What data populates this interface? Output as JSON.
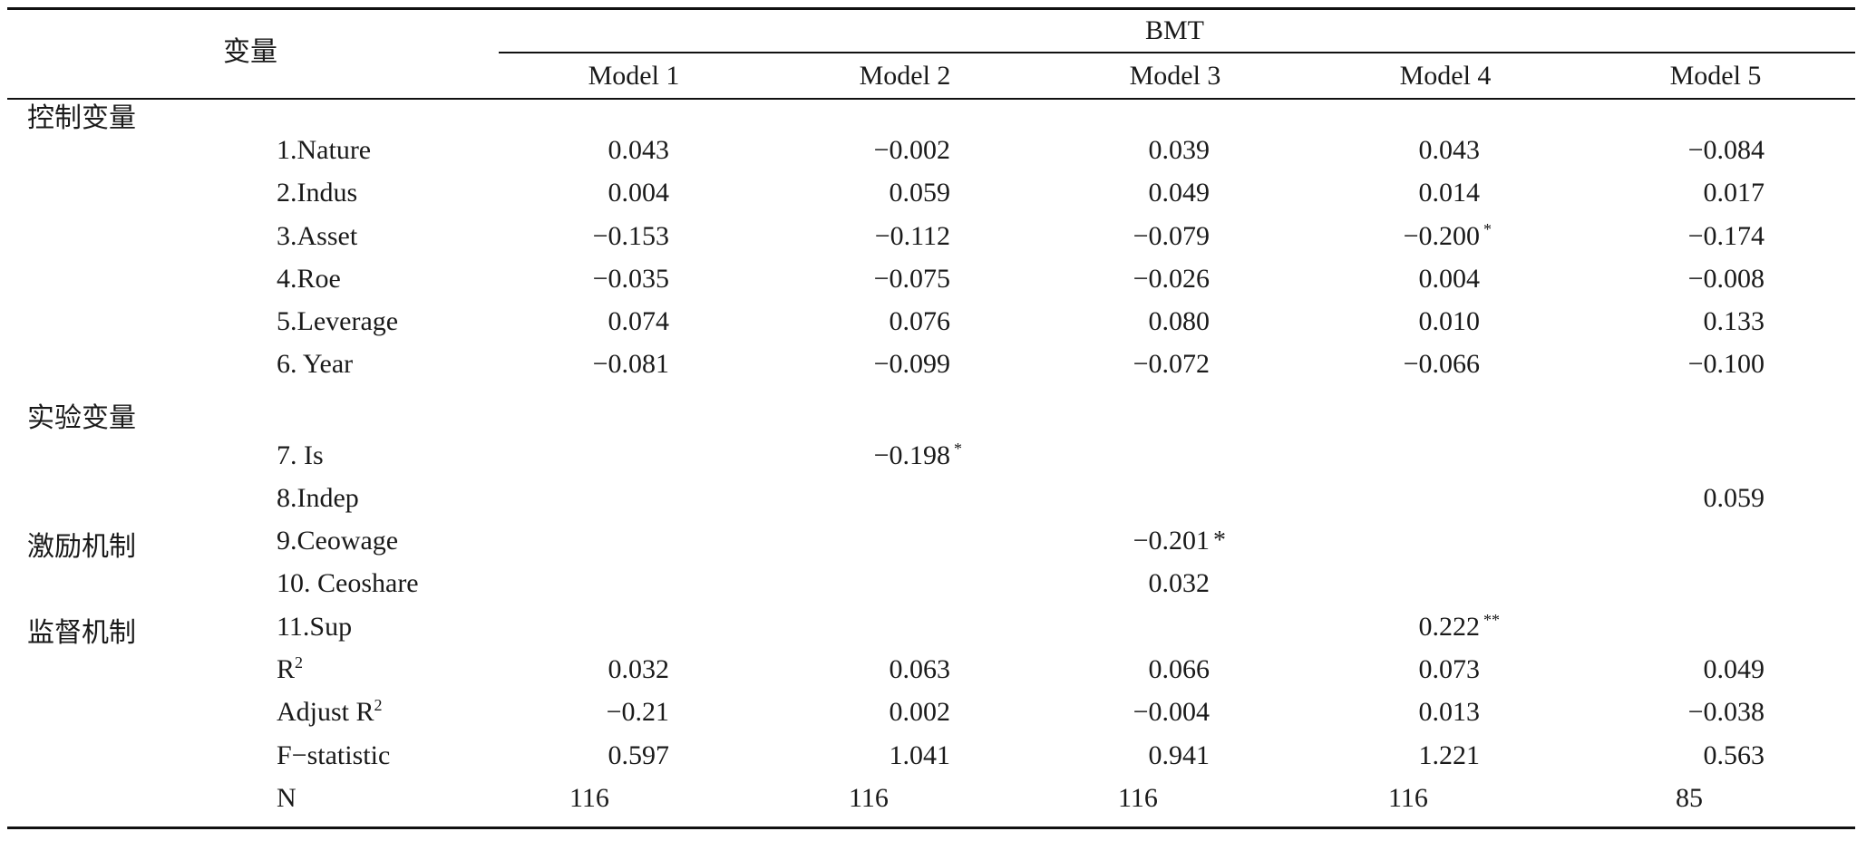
{
  "header": {
    "variable_label": "变量",
    "dependent": "BMT",
    "models": [
      "Model 1",
      "Model 2",
      "Model 3",
      "Model 4",
      "Model 5"
    ]
  },
  "groups": {
    "control": "控制变量",
    "experiment": "实验变量",
    "incentive": "激励机制",
    "supervision": "监督机制"
  },
  "rows": [
    {
      "label": "1.Nature",
      "values": [
        "0.043",
        "−0.002",
        "0.039",
        "0.043",
        "−0.084"
      ],
      "sig": [
        "",
        "",
        "",
        "",
        ""
      ]
    },
    {
      "label": "2.Indus",
      "values": [
        "0.004",
        "0.059",
        "0.049",
        "0.014",
        "0.017"
      ],
      "sig": [
        "",
        "",
        "",
        "",
        ""
      ]
    },
    {
      "label": "3.Asset",
      "values": [
        "−0.153",
        "−0.112",
        "−0.079",
        "−0.200",
        "−0.174"
      ],
      "sig": [
        "",
        "",
        "",
        "*",
        ""
      ]
    },
    {
      "label": "4.Roe",
      "values": [
        "−0.035",
        "−0.075",
        "−0.026",
        "0.004",
        "−0.008"
      ],
      "sig": [
        "",
        "",
        "",
        "",
        ""
      ]
    },
    {
      "label": "5.Leverage",
      "values": [
        "0.074",
        "0.076",
        "0.080",
        "0.010",
        "0.133"
      ],
      "sig": [
        "",
        "",
        "",
        "",
        ""
      ]
    },
    {
      "label": "6. Year",
      "values": [
        "−0.081",
        "−0.099",
        "−0.072",
        "−0.066",
        "−0.100"
      ],
      "sig": [
        "",
        "",
        "",
        "",
        ""
      ]
    },
    {
      "label": "7. Is",
      "values": [
        "",
        "−0.198",
        "",
        "",
        ""
      ],
      "sig": [
        "",
        "*",
        "",
        "",
        ""
      ]
    },
    {
      "label": "8.Indep",
      "values": [
        "",
        "",
        "",
        "",
        "0.059"
      ],
      "sig": [
        "",
        "",
        "",
        "",
        ""
      ]
    },
    {
      "label": "9.Ceowage",
      "values": [
        "",
        "",
        "−0.201",
        "",
        ""
      ],
      "sig": [
        "",
        "",
        "*",
        "",
        ""
      ]
    },
    {
      "label": "10. Ceoshare",
      "values": [
        "",
        "",
        "0.032",
        "",
        ""
      ],
      "sig": [
        "",
        "",
        "",
        "",
        ""
      ]
    },
    {
      "label": "11.Sup",
      "values": [
        "",
        "",
        "",
        "0.222",
        ""
      ],
      "sig": [
        "",
        "",
        "",
        "**",
        ""
      ]
    },
    {
      "label": "R",
      "label_sup": "2",
      "values": [
        "0.032",
        "0.063",
        "0.066",
        "0.073",
        "0.049"
      ],
      "sig": [
        "",
        "",
        "",
        "",
        ""
      ]
    },
    {
      "label": "Adjust R",
      "label_sup": "2",
      "values": [
        "−0.21",
        "0.002",
        "−0.004",
        "0.013",
        "−0.038"
      ],
      "sig": [
        "",
        "",
        "",
        "",
        ""
      ]
    },
    {
      "label": "F−statistic",
      "values": [
        "0.597",
        "1.041",
        "0.941",
        "1.221",
        "0.563"
      ],
      "sig": [
        "",
        "",
        "",
        "",
        ""
      ]
    },
    {
      "label": "N",
      "values": [
        "116",
        "116",
        "116",
        "116",
        "85"
      ],
      "sig": [
        "",
        "",
        "",
        "",
        ""
      ]
    }
  ]
}
